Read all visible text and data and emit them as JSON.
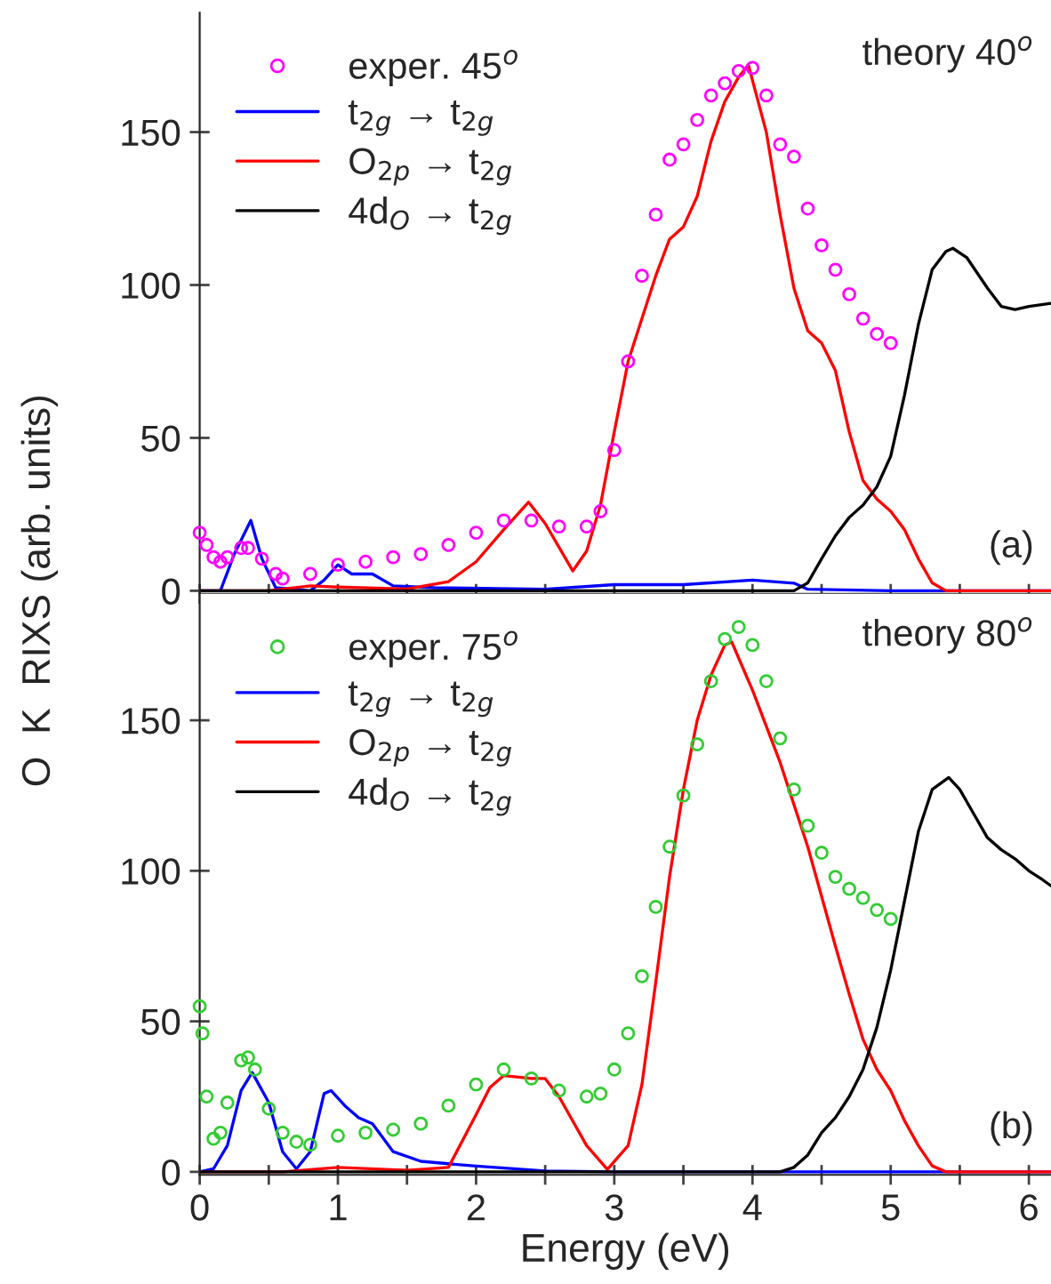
{
  "chart_data": [
    {
      "type": "line",
      "ylabel": "O  K  RIXS (arb. units)",
      "annotations": [
        "theory 40$^{o}$",
        "(a)"
      ],
      "legend": "top left",
      "tick_labels": "y",
      "xlim": [
        0,
        6.16
      ],
      "ylim": [
        -1,
        189
      ],
      "yticks": [
        0,
        50,
        100,
        150
      ],
      "xticks": [
        {
          "value": 0,
          "label": null
        },
        {
          "value": 0.5,
          "label": null
        },
        {
          "value": 1,
          "label": null
        },
        {
          "value": 1.5,
          "label": null
        },
        {
          "value": 2,
          "label": null
        },
        {
          "value": 2.5,
          "label": null
        },
        {
          "value": 3,
          "label": null
        },
        {
          "value": 3.5,
          "label": null
        },
        {
          "value": 4,
          "label": null
        },
        {
          "value": 4.5,
          "label": null
        },
        {
          "value": 5,
          "label": null
        },
        {
          "value": 5.5,
          "label": null
        },
        {
          "value": 6,
          "label": null
        }
      ],
      "series": [
        {
          "name": "exper. 45$^{o}$",
          "type": "scatter",
          "marker": "circle",
          "color": "#ff00ff",
          "x": [
            0,
            0.05,
            0.1,
            0.15,
            0.2,
            0.3,
            0.35,
            0.45,
            0.55,
            0.6,
            0.8,
            1.0,
            1.2,
            1.4,
            1.6,
            1.8,
            2.0,
            2.2,
            2.4,
            2.6,
            2.8,
            2.9,
            3.0,
            3.1,
            3.2,
            3.3,
            3.4,
            3.5,
            3.6,
            3.7,
            3.8,
            3.9,
            4.0,
            4.1,
            4.2,
            4.3,
            4.4,
            4.5,
            4.6,
            4.7,
            4.8,
            4.9,
            5.0
          ],
          "values": [
            19,
            15,
            11,
            9.5,
            11,
            14,
            14,
            10.5,
            5.5,
            4,
            5.5,
            8.5,
            9.5,
            11,
            12,
            15,
            19,
            23,
            23,
            21,
            21,
            26,
            46,
            75,
            103,
            123,
            141,
            146,
            154,
            162,
            166,
            170,
            171,
            162,
            146,
            142,
            125,
            113,
            105,
            97,
            89,
            84,
            81
          ]
        },
        {
          "name": "t$_{2g}$ → t$_{2g}$",
          "color": "#0000ff",
          "x": [
            0,
            0.15,
            0.25,
            0.37,
            0.45,
            0.55,
            0.8,
            0.9,
            1.0,
            1.1,
            1.25,
            1.4,
            1.7,
            2.5,
            3.0,
            3.5,
            4.0,
            4.3,
            4.4,
            5.0,
            6.16
          ],
          "values": [
            0,
            0,
            12,
            23,
            10.5,
            1,
            0,
            3.5,
            8.5,
            5.5,
            5.5,
            1.6,
            1,
            0.5,
            2,
            2,
            3.5,
            2.5,
            0.5,
            0,
            0
          ]
        },
        {
          "name": "O$_{2p}$ → t$_{2g}$",
          "color": "#ff0000",
          "x": [
            0,
            0.5,
            0.8,
            1.0,
            1.5,
            1.8,
            2.0,
            2.2,
            2.38,
            2.5,
            2.7,
            2.8,
            2.9,
            3.0,
            3.1,
            3.2,
            3.3,
            3.4,
            3.5,
            3.6,
            3.7,
            3.8,
            3.9,
            3.97,
            4.1,
            4.2,
            4.3,
            4.4,
            4.5,
            4.6,
            4.7,
            4.8,
            4.9,
            5.0,
            5.1,
            5.2,
            5.3,
            5.4,
            6.16
          ],
          "values": [
            0,
            0,
            1.6,
            1.2,
            0.6,
            3,
            9.5,
            20,
            29,
            22,
            6.5,
            13,
            28,
            52,
            75,
            89,
            103,
            115,
            119,
            129,
            147,
            160,
            168,
            172,
            150,
            123,
            99,
            85,
            81,
            72,
            52,
            36,
            30,
            26,
            20,
            10.5,
            2.6,
            0,
            0
          ]
        },
        {
          "name": "4d$_{O}$ → t$_{2g}$",
          "color": "#000000",
          "x": [
            0,
            4.3,
            4.4,
            4.5,
            4.6,
            4.7,
            4.8,
            4.9,
            5.0,
            5.1,
            5.2,
            5.3,
            5.4,
            5.45,
            5.55,
            5.7,
            5.8,
            5.9,
            6.0,
            6.16
          ],
          "values": [
            0,
            0,
            2.6,
            10.5,
            18,
            24,
            28,
            34,
            44,
            64,
            87,
            105,
            111,
            112,
            109,
            99,
            93,
            92,
            93,
            94
          ]
        }
      ]
    },
    {
      "type": "line",
      "xlabel": "Energy (eV)",
      "annotations": [
        "theory 80$^{o}$",
        "(b)"
      ],
      "legend": "top left",
      "xlim": [
        0,
        6.16
      ],
      "ylim": [
        -1,
        192
      ],
      "yticks": [
        0,
        50,
        100,
        150
      ],
      "xticks": [
        0,
        {
          "value": 0.5,
          "label": null
        },
        1,
        {
          "value": 1.5,
          "label": null
        },
        2,
        {
          "value": 2.5,
          "label": null
        },
        3,
        {
          "value": 3.5,
          "label": null
        },
        4,
        {
          "value": 4.5,
          "label": null
        },
        5,
        {
          "value": 5.5,
          "label": null
        },
        6
      ],
      "series": [
        {
          "name": "exper. 75$^{o}$",
          "type": "scatter",
          "marker": "circle",
          "color": "#33cc33",
          "x": [
            0,
            0.02,
            0.05,
            0.1,
            0.15,
            0.2,
            0.3,
            0.35,
            0.4,
            0.5,
            0.6,
            0.7,
            0.8,
            1.0,
            1.2,
            1.4,
            1.6,
            1.8,
            2.0,
            2.2,
            2.4,
            2.6,
            2.8,
            2.9,
            3.0,
            3.1,
            3.2,
            3.3,
            3.4,
            3.5,
            3.6,
            3.7,
            3.8,
            3.9,
            4.0,
            4.1,
            4.2,
            4.3,
            4.4,
            4.5,
            4.6,
            4.7,
            4.8,
            4.9,
            5.0
          ],
          "values": [
            55,
            46,
            25,
            11,
            13,
            23,
            37,
            38,
            34,
            21,
            13,
            10,
            9,
            12,
            13,
            14,
            16,
            22,
            29,
            34,
            31,
            27,
            25,
            26,
            34,
            46,
            65,
            88,
            108,
            125,
            142,
            163,
            177,
            181,
            175,
            163,
            144,
            127,
            115,
            106,
            98,
            94,
            91,
            87,
            84
          ]
        },
        {
          "name": "t$_{2g}$ → t$_{2g}$",
          "color": "#0000ff",
          "x": [
            0,
            0.1,
            0.2,
            0.3,
            0.38,
            0.5,
            0.6,
            0.7,
            0.8,
            0.9,
            0.95,
            1.05,
            1.15,
            1.25,
            1.4,
            1.6,
            2.0,
            2.5,
            3.0,
            6.16
          ],
          "values": [
            0,
            1,
            8.7,
            27,
            33,
            23,
            6.7,
            1,
            6.7,
            26,
            27,
            22,
            18,
            16,
            6.7,
            3.5,
            1.9,
            0.3,
            0,
            0
          ]
        },
        {
          "name": "O$_{2p}$ → t$_{2g}$",
          "color": "#ff0000",
          "x": [
            0,
            0.6,
            1.0,
            1.5,
            1.8,
            2.0,
            2.1,
            2.2,
            2.4,
            2.5,
            2.6,
            2.8,
            2.95,
            3.1,
            3.2,
            3.3,
            3.4,
            3.5,
            3.6,
            3.7,
            3.8,
            3.85,
            4.0,
            4.2,
            4.4,
            4.6,
            4.7,
            4.8,
            4.9,
            5.0,
            5.1,
            5.2,
            5.3,
            5.4,
            6.16
          ],
          "values": [
            0,
            0,
            1.5,
            0.5,
            1.5,
            19,
            28,
            32,
            31,
            31,
            25,
            8.7,
            0.8,
            8.7,
            29,
            63,
            98,
            127,
            150,
            165,
            175,
            176,
            160,
            136,
            108,
            75,
            59,
            44,
            34,
            27,
            17,
            8.7,
            2,
            0,
            0
          ]
        },
        {
          "name": "4d$_{O}$ → t$_{2g}$",
          "color": "#000000",
          "x": [
            0,
            4.2,
            4.3,
            4.4,
            4.5,
            4.6,
            4.7,
            4.8,
            4.9,
            5.0,
            5.1,
            5.2,
            5.3,
            5.42,
            5.5,
            5.6,
            5.7,
            5.8,
            5.9,
            6.0,
            6.1,
            6.16
          ],
          "values": [
            0,
            0,
            1.5,
            5.6,
            13,
            18,
            25,
            34,
            48,
            67,
            90,
            113,
            127,
            131,
            127,
            119,
            111,
            107,
            104,
            100,
            97,
            95
          ]
        }
      ]
    }
  ]
}
